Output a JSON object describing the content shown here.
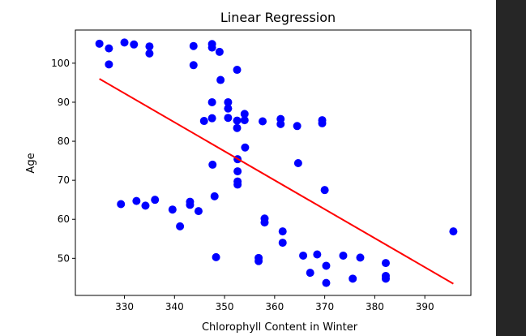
{
  "chart_data": {
    "type": "scatter",
    "title": "Linear Regression",
    "xlabel": "Chlorophyll Content in Winter",
    "ylabel": "Age",
    "xlim": [
      320.2,
      399.2
    ],
    "ylim": [
      40.5,
      108.5
    ],
    "xticks": [
      330,
      340,
      350,
      360,
      370,
      380,
      390
    ],
    "yticks": [
      50,
      60,
      70,
      80,
      90,
      100
    ],
    "grid": false,
    "legend": "none",
    "marker_color": "#0000ff",
    "line_color": "#ff0000",
    "points": [
      [
        325.0,
        105.0
      ],
      [
        326.9,
        103.8
      ],
      [
        326.9,
        99.7
      ],
      [
        330.0,
        105.3
      ],
      [
        331.9,
        104.8
      ],
      [
        335.0,
        104.3
      ],
      [
        335.0,
        102.5
      ],
      [
        343.8,
        104.4
      ],
      [
        343.8,
        99.5
      ],
      [
        347.5,
        104.9
      ],
      [
        347.5,
        104.0
      ],
      [
        349.0,
        102.9
      ],
      [
        352.5,
        98.3
      ],
      [
        349.2,
        95.7
      ],
      [
        347.5,
        90.0
      ],
      [
        350.7,
        90.0
      ],
      [
        350.7,
        88.4
      ],
      [
        350.7,
        86.0
      ],
      [
        345.9,
        85.2
      ],
      [
        347.5,
        85.9
      ],
      [
        352.5,
        85.3
      ],
      [
        352.5,
        83.4
      ],
      [
        354.0,
        87.0
      ],
      [
        354.0,
        85.4
      ],
      [
        357.6,
        85.1
      ],
      [
        361.2,
        85.7
      ],
      [
        361.2,
        84.4
      ],
      [
        364.5,
        83.9
      ],
      [
        369.5,
        85.4
      ],
      [
        369.5,
        84.6
      ],
      [
        354.1,
        78.4
      ],
      [
        352.6,
        75.4
      ],
      [
        364.7,
        74.4
      ],
      [
        347.6,
        74.0
      ],
      [
        352.6,
        72.3
      ],
      [
        352.6,
        69.7
      ],
      [
        352.6,
        68.9
      ],
      [
        370.0,
        67.5
      ],
      [
        348.0,
        65.9
      ],
      [
        329.3,
        63.9
      ],
      [
        332.4,
        64.7
      ],
      [
        334.2,
        63.5
      ],
      [
        336.1,
        65.0
      ],
      [
        339.6,
        62.5
      ],
      [
        343.1,
        64.5
      ],
      [
        343.1,
        63.7
      ],
      [
        344.8,
        62.1
      ],
      [
        341.1,
        58.2
      ],
      [
        358.0,
        60.2
      ],
      [
        358.0,
        59.2
      ],
      [
        361.6,
        56.9
      ],
      [
        361.6,
        54.0
      ],
      [
        395.7,
        56.9
      ],
      [
        348.3,
        50.3
      ],
      [
        356.8,
        50.1
      ],
      [
        356.8,
        49.3
      ],
      [
        365.7,
        50.7
      ],
      [
        368.5,
        51.0
      ],
      [
        373.7,
        50.7
      ],
      [
        377.1,
        50.2
      ],
      [
        367.1,
        46.3
      ],
      [
        370.3,
        48.1
      ],
      [
        382.2,
        48.8
      ],
      [
        382.2,
        45.5
      ],
      [
        382.2,
        44.8
      ],
      [
        375.6,
        44.8
      ],
      [
        370.3,
        43.7
      ]
    ],
    "regression_line": {
      "x": [
        325.0,
        395.7
      ],
      "y": [
        96.0,
        43.5
      ]
    }
  }
}
